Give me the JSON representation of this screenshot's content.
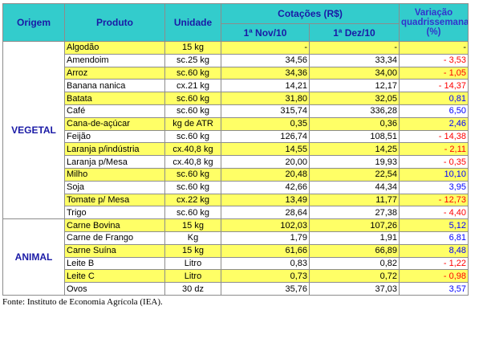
{
  "header": {
    "origem": "Origem",
    "produto": "Produto",
    "unidade": "Unidade",
    "cotacoes": "Cotações (R$)",
    "nov": "1ª Nov/10",
    "dez": "1ª Dez/10",
    "variacao": "Variação quadrissemanal (%)"
  },
  "groups": [
    {
      "origem": "VEGETAL",
      "rows": [
        {
          "cells": [
            "Algodão",
            "15 kg",
            "-",
            "-",
            "-"
          ],
          "highlight": true
        },
        {
          "cells": [
            "Amendoim",
            "sc.25 kg",
            "34,56",
            "33,34",
            "- 3,53"
          ],
          "highlight": false
        },
        {
          "cells": [
            "Arroz",
            "sc.60 kg",
            "34,36",
            "34,00",
            "- 1,05"
          ],
          "highlight": true
        },
        {
          "cells": [
            "Banana nanica",
            "cx.21 kg",
            "14,21",
            "12,17",
            "- 14,37"
          ],
          "highlight": false
        },
        {
          "cells": [
            "Batata",
            "sc.60 kg",
            "31,80",
            "32,05",
            "0,81"
          ],
          "highlight": true
        },
        {
          "cells": [
            "Café",
            "sc.60 kg",
            "315,74",
            "336,28",
            "6,50"
          ],
          "highlight": false
        },
        {
          "cells": [
            "Cana-de-açúcar",
            "kg de ATR",
            "0,35",
            "0,36",
            "2,46"
          ],
          "highlight": true
        },
        {
          "cells": [
            "Feijão",
            "sc.60 kg",
            "126,74",
            "108,51",
            "- 14,38"
          ],
          "highlight": false
        },
        {
          "cells": [
            "Laranja p/indústria",
            "cx.40,8 kg",
            "14,55",
            "14,25",
            "- 2,11"
          ],
          "highlight": true
        },
        {
          "cells": [
            "Laranja p/Mesa",
            "cx.40,8 kg",
            "20,00",
            "19,93",
            "- 0,35"
          ],
          "highlight": false
        },
        {
          "cells": [
            "Milho",
            "sc.60 kg",
            "20,48",
            "22,54",
            "10,10"
          ],
          "highlight": true
        },
        {
          "cells": [
            "Soja",
            "sc.60 kg",
            "42,66",
            "44,34",
            "3,95"
          ],
          "highlight": false
        },
        {
          "cells": [
            "Tomate p/ Mesa",
            "cx.22 kg",
            "13,49",
            "11,77",
            "- 12,73"
          ],
          "highlight": true
        },
        {
          "cells": [
            "Trigo",
            "sc.60 kg",
            "28,64",
            "27,38",
            "- 4,40"
          ],
          "highlight": false
        }
      ]
    },
    {
      "origem": "ANIMAL",
      "rows": [
        {
          "cells": [
            "Carne Bovina",
            "15 kg",
            "102,03",
            "107,26",
            "5,12"
          ],
          "highlight": true
        },
        {
          "cells": [
            "Carne de Frango",
            "Kg",
            "1,79",
            "1,91",
            "6,81"
          ],
          "highlight": false
        },
        {
          "cells": [
            "Carne Suína",
            "15 kg",
            "61,66",
            "66,89",
            "8,48"
          ],
          "highlight": true
        },
        {
          "cells": [
            "Leite B",
            "Litro",
            "0,83",
            "0,82",
            "- 1,22"
          ],
          "highlight": false
        },
        {
          "cells": [
            "Leite C",
            "Litro",
            "0,73",
            "0,72",
            "- 0,98"
          ],
          "highlight": true
        },
        {
          "cells": [
            "Ovos",
            "30 dz",
            "35,76",
            "37,03",
            "3,57"
          ],
          "highlight": false
        }
      ]
    }
  ],
  "source": "Fonte: Instituto de Economia Agrícola (IEA)."
}
